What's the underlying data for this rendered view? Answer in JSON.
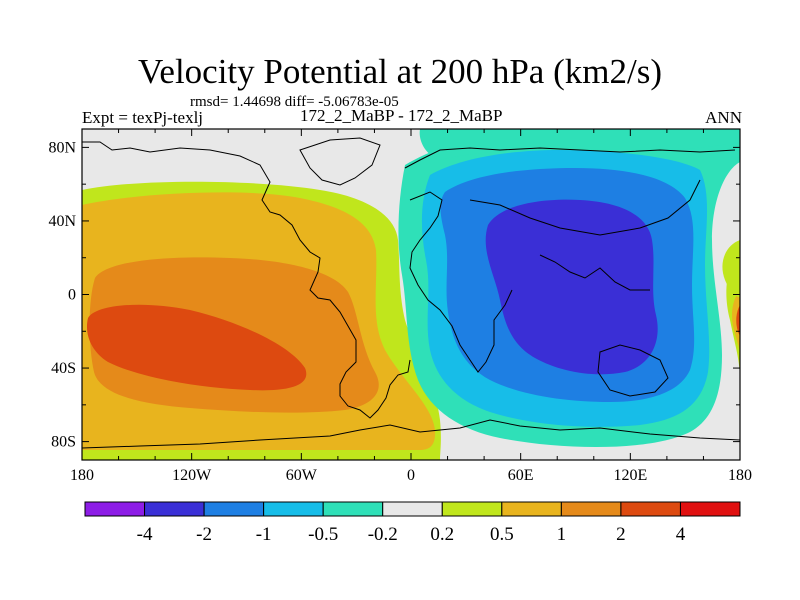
{
  "header": {
    "title": "Velocity Potential at 200 hPa (km2/s)",
    "stats": "rmsd= 1.44698  diff= -5.06783e-05",
    "experiment": "Expt = texPj-texlj",
    "runs": "172_2_MaBP - 172_2_MaBP",
    "season": "ANN"
  },
  "chart_data": {
    "type": "heatmap",
    "title": "Velocity Potential at 200 hPa (km2/s)",
    "projection": "cylindrical equidistant, centered on 0",
    "xlim": [
      -180,
      180
    ],
    "ylim": [
      -90,
      90
    ],
    "x_ticks": [
      {
        "value": -180,
        "label": "180"
      },
      {
        "value": -120,
        "label": "120W"
      },
      {
        "value": -60,
        "label": "60W"
      },
      {
        "value": 0,
        "label": "0"
      },
      {
        "value": 60,
        "label": "60E"
      },
      {
        "value": 120,
        "label": "120E"
      },
      {
        "value": 180,
        "label": "180"
      }
    ],
    "y_ticks": [
      {
        "value": 80,
        "label": "80N"
      },
      {
        "value": 40,
        "label": "40N"
      },
      {
        "value": 0,
        "label": "0"
      },
      {
        "value": -40,
        "label": "40S"
      },
      {
        "value": -80,
        "label": "80S"
      }
    ],
    "colorbar": {
      "levels": [
        "-4",
        "-2",
        "-1",
        "-0.5",
        "-0.2",
        "0.2",
        "0.5",
        "1",
        "2",
        "4"
      ],
      "colors": [
        "#8d1de6",
        "#3a2fd6",
        "#1e7fe3",
        "#17bde8",
        "#2fe0b8",
        "#e8e8e8",
        "#c0e61c",
        "#e8b41e",
        "#e58a1a",
        "#dd4a10",
        "#e01010"
      ]
    },
    "features": [
      {
        "name": "Western Hemisphere maximum",
        "lon": -130,
        "lat": -20,
        "level_range": "2 to 4"
      },
      {
        "name": "Eastern Hemisphere minimum",
        "lon": 90,
        "lat": 10,
        "level_range": "below -2"
      }
    ]
  }
}
